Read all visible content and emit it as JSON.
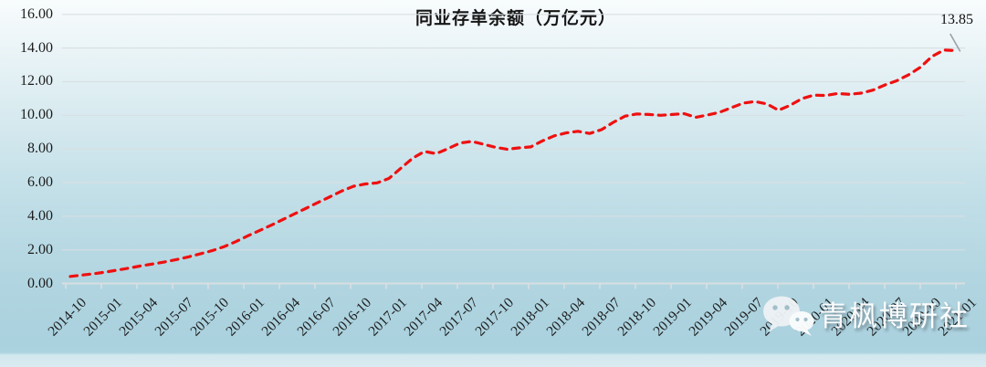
{
  "chart_data": {
    "type": "line",
    "title": "同业存单余额（万亿元）",
    "series": [
      {
        "name": "同业存单余额",
        "start_month": "2014-10",
        "frequency": "monthly",
        "values": [
          0.42,
          0.5,
          0.58,
          0.68,
          0.8,
          0.92,
          1.05,
          1.16,
          1.28,
          1.42,
          1.58,
          1.76,
          1.95,
          2.18,
          2.48,
          2.82,
          3.14,
          3.46,
          3.8,
          4.14,
          4.48,
          4.82,
          5.16,
          5.5,
          5.78,
          5.92,
          5.98,
          6.25,
          6.85,
          7.45,
          7.85,
          7.72,
          8.02,
          8.35,
          8.45,
          8.28,
          8.1,
          7.98,
          8.06,
          8.12,
          8.48,
          8.78,
          8.95,
          9.05,
          8.92,
          9.15,
          9.58,
          9.95,
          10.08,
          10.05,
          10.0,
          10.05,
          10.1,
          9.88,
          10.02,
          10.18,
          10.45,
          10.72,
          10.82,
          10.68,
          10.3,
          10.6,
          11.0,
          11.2,
          11.18,
          11.3,
          11.25,
          11.32,
          11.5,
          11.8,
          12.05,
          12.4,
          12.85,
          13.5,
          13.88,
          13.85
        ]
      }
    ],
    "x_tick_labels": [
      "2014-10",
      "2015-01",
      "2015-04",
      "2015-07",
      "2015-10",
      "2016-01",
      "2016-04",
      "2016-07",
      "2016-10",
      "2017-01",
      "2017-04",
      "2017-07",
      "2017-10",
      "2018-01",
      "2018-04",
      "2018-07",
      "2018-10",
      "2019-01",
      "2019-04",
      "2019-07",
      "2019-10",
      "2020-01",
      "2020-04",
      "2020-07",
      "2020-10",
      "2021-01"
    ],
    "y_tick_labels": [
      "0.00",
      "2.00",
      "4.00",
      "6.00",
      "8.00",
      "10.00",
      "12.00",
      "14.00",
      "16.00"
    ],
    "ylim": [
      0,
      16
    ],
    "y_tick_step": 2,
    "grid": true,
    "legend": "none",
    "line_color": "#ef1010",
    "line_style": "dashed",
    "last_point_label": "13.85"
  },
  "watermark": {
    "text": "青枫博研社",
    "icon": "wechat-icon"
  }
}
